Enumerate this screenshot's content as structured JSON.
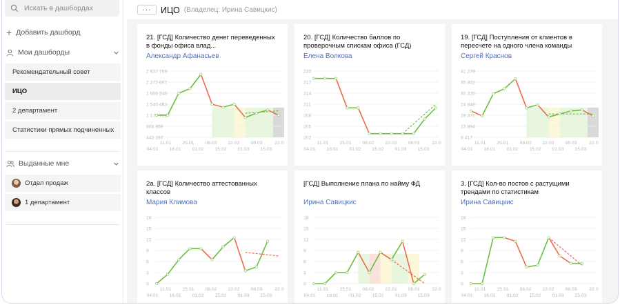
{
  "sidebar": {
    "search_placeholder": "Искать в дашбордах",
    "add_dashboard": "Добавить дашборд",
    "my_dashboards": "Мои дашборды",
    "my_items": [
      "Рекомендательный совет",
      "ИЦО",
      "2 департамент",
      "Статистики прямых подчиненных"
    ],
    "active_item": "ИЦО",
    "shared_with_me": "Выданные мне",
    "shared_items": [
      "Отдел продаж",
      "1 департамент"
    ]
  },
  "header": {
    "title": "ИЦО",
    "owner": "(Владелец: Ирина Савицкис)"
  },
  "colors": {
    "up": "#6cbe3f",
    "down": "#ec6a4c",
    "owner_link": "#4a72c5",
    "zone_green": "#e7f6dc",
    "zone_yellow": "#fbf7d8",
    "zone_red": "#fbe1dc",
    "zone_gray": "#d9d9d9"
  },
  "cards": [
    {
      "title": "21. [ГСД] Количество денег переведенных в фонды офиса влад...",
      "owner": "Александр Афанасьев",
      "chart_data": {
        "type": "line",
        "yticks": [
          "2 637 769",
          "2 272 607",
          "1 906 245",
          "1 540 483",
          "1 174 721",
          "808 959",
          "443 197"
        ],
        "ylim": [
          443197,
          2637769
        ],
        "xticks_top": [
          "11.01",
          "25.01",
          "08.02",
          "22.02",
          "08.03",
          "22.0"
        ],
        "xticks_bottom": [
          "04.01",
          "18.01",
          "01.02",
          "15.02",
          "01.03",
          "15.03"
        ],
        "x": [
          0,
          1,
          2,
          3,
          4,
          5,
          6,
          7,
          8,
          9,
          10,
          11
        ],
        "values": [
          1174721,
          1174721,
          1906245,
          2052000,
          2530000,
          1540483,
          1440000,
          1540483,
          1100000,
          1240000,
          1350000,
          1174721
        ],
        "trend": [
          [
            8,
            1240000
          ],
          [
            11,
            1320000
          ]
        ],
        "zones": [
          {
            "from": 5,
            "to": 7,
            "color": "green"
          },
          {
            "from": 7,
            "to": 8,
            "color": "yellow"
          },
          {
            "from": 8,
            "to": 9,
            "color": "green"
          },
          {
            "from": 9,
            "to": 10.5,
            "color": "green"
          },
          {
            "from": 10.5,
            "to": 11.5,
            "color": "gray"
          }
        ]
      }
    },
    {
      "title": "20. [ГСД] Количество баллов по проверочным спискам офиса (ГСД)",
      "owner": "Елена Волкова",
      "chart_data": {
        "type": "line",
        "yticks": [
          "220",
          "217",
          "214",
          "211",
          "208",
          "205",
          "202"
        ],
        "ylim": [
          202,
          220
        ],
        "xticks_top": [
          "11.01",
          "25.01",
          "08.02",
          "22.02",
          "08.03",
          "22.0"
        ],
        "xticks_bottom": [
          "04.01",
          "18.01",
          "01.02",
          "15.02",
          "01.03",
          "15.03"
        ],
        "x": [
          0,
          1,
          2,
          3,
          4,
          5,
          6,
          7,
          8,
          9,
          10,
          11
        ],
        "values": [
          218,
          218,
          218,
          210,
          210,
          203,
          203,
          203,
          203,
          203,
          207,
          210
        ],
        "trend": [
          [
            8,
            203
          ],
          [
            11,
            211
          ]
        ],
        "zones": []
      }
    },
    {
      "title": "19. [ГСД] Поступления от клиентов в пересчете на одного члена команды",
      "owner": "Сергей Краснов",
      "chart_data": {
        "type": "line",
        "yticks": [
          "41 279",
          "35 802",
          "30 325",
          "24 848",
          "19 371",
          "13 894",
          "8 417"
        ],
        "ylim": [
          8417,
          41279
        ],
        "xticks_top": [
          "11.01",
          "25.01",
          "08.02",
          "22.02",
          "08.03",
          "22.0"
        ],
        "xticks_bottom": [
          "04.01",
          "18.01",
          "01.02",
          "15.02",
          "01.03",
          "15.03"
        ],
        "x": [
          0,
          1,
          2,
          3,
          4,
          5,
          6,
          7,
          8,
          9,
          10,
          11
        ],
        "values": [
          21500,
          19000,
          30000,
          32500,
          37500,
          23000,
          24500,
          18500,
          20000,
          21500,
          22000,
          19000
        ],
        "trend": [
          [
            7,
            20000
          ],
          [
            11,
            20000
          ]
        ],
        "zones": [
          {
            "from": 5,
            "to": 7,
            "color": "green"
          },
          {
            "from": 7,
            "to": 8,
            "color": "yellow"
          },
          {
            "from": 8,
            "to": 10.5,
            "color": "green"
          },
          {
            "from": 10.5,
            "to": 11.5,
            "color": "gray"
          }
        ]
      }
    },
    {
      "title": "2а. [ГСД] Количество аттестованных классов",
      "owner": "Мария Климова",
      "chart_data": {
        "type": "line",
        "yticks": [
          "18",
          "15",
          "12",
          "9",
          "6",
          "3",
          "0"
        ],
        "ylim": [
          0,
          18
        ],
        "xticks_top": [
          "11.01",
          "25.01",
          "08.02",
          "22.02",
          "08.03",
          "22.0"
        ],
        "xticks_bottom": [
          "04.01",
          "18.01",
          "01.02",
          "15.02",
          "01.03",
          "15.03"
        ],
        "x": [
          0,
          1,
          2,
          3,
          4,
          5,
          6,
          7,
          8,
          9,
          10,
          11
        ],
        "values": [
          0,
          2.5,
          6.5,
          9.5,
          9.5,
          6.5,
          10,
          12.5,
          3.5,
          4.5,
          11.5,
          0
        ],
        "draw_count": 11,
        "trend": [
          [
            8,
            8.5
          ],
          [
            11,
            7.5
          ]
        ],
        "zones": []
      }
    },
    {
      "title": "[ГСД] Выполнение плана по найму ФД",
      "owner": "Ирина Савицкис",
      "chart_data": {
        "type": "line",
        "yticks": [
          "18",
          "15",
          "12",
          "9",
          "6",
          "3",
          "0"
        ],
        "ylim": [
          0,
          18
        ],
        "xticks_top": [
          "11.01",
          "25.01",
          "08.02",
          "22.02",
          "08.03",
          "22.0"
        ],
        "xticks_bottom": [
          "04.01",
          "18.01",
          "01.02",
          "15.02",
          "01.03",
          "15.03"
        ],
        "x": [
          0,
          1,
          2,
          3,
          4,
          5,
          6,
          7,
          8,
          9,
          10,
          11
        ],
        "values": [
          0,
          0,
          3,
          3,
          8.5,
          3,
          8.5,
          6.5,
          11.5,
          0,
          2.5,
          0
        ],
        "draw_count": 11,
        "trend": [
          [
            7,
            6.5
          ],
          [
            10,
            0
          ]
        ],
        "zones": [
          {
            "from": 4,
            "to": 5,
            "color": "green"
          },
          {
            "from": 5,
            "to": 6,
            "color": "red"
          },
          {
            "from": 6,
            "to": 7,
            "color": "yellow"
          },
          {
            "from": 7,
            "to": 8.5,
            "color": "green"
          },
          {
            "from": 8.5,
            "to": 9.5,
            "color": "yellow"
          }
        ]
      }
    },
    {
      "title": "3. [ГСД] Кол-во постов с растущими трендами по статистикам",
      "owner": "Ирина Савицкис",
      "chart_data": {
        "type": "line",
        "yticks": [
          "18",
          "15",
          "12",
          "9",
          "6",
          "3",
          "0"
        ],
        "ylim": [
          0,
          18
        ],
        "xticks_top": [
          "11.01",
          "25.01",
          "08.02",
          "22.02",
          "08.03",
          "22.0"
        ],
        "xticks_bottom": [
          "04.01",
          "18.01",
          "01.02",
          "15.02",
          "01.03",
          "15.03"
        ],
        "x": [
          0,
          1,
          2,
          3,
          4,
          5,
          6,
          7,
          8,
          9,
          10,
          11
        ],
        "values": [
          0,
          0,
          12.5,
          12.5,
          11.5,
          4.5,
          5,
          12.5,
          7.5,
          5.5,
          5.5,
          0
        ],
        "draw_count": 11,
        "trend": [
          [
            7,
            12.5
          ],
          [
            10,
            5
          ]
        ],
        "zones": []
      }
    }
  ]
}
